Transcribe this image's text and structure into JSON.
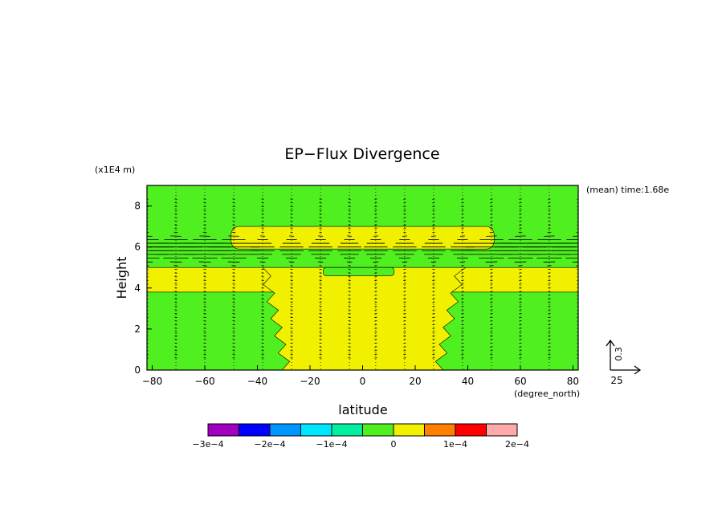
{
  "chart_data": {
    "type": "heatmap",
    "title": "EP−Flux Divergence",
    "xlabel": "latitude",
    "ylabel": "Height",
    "x_units": "(degree_north)",
    "y_units": "(x1E4 m)",
    "annotation": "(mean) time:1.68e",
    "xlim": [
      -82,
      82
    ],
    "ylim": [
      0,
      9
    ],
    "x_ticks": [
      -80,
      -60,
      -40,
      -20,
      0,
      20,
      40,
      60,
      80
    ],
    "x_tick_labels": [
      "−80",
      "−60",
      "−40",
      "−20",
      "0",
      "20",
      "40",
      "60",
      "80"
    ],
    "y_ticks": [
      0,
      2,
      4,
      6,
      8
    ],
    "y_tick_labels": [
      "0",
      "2",
      "4",
      "6",
      "8"
    ],
    "vector_key": {
      "x_label": "25",
      "y_label": "0.3"
    },
    "colorbar": {
      "levels": [
        "−3e−4",
        "−2e−4",
        "−1e−4",
        "0",
        "1e−4",
        "2e−4"
      ],
      "colors": [
        "#a000c0",
        "#0000ff",
        "#0096ff",
        "#00e6ff",
        "#00f0a0",
        "#50f020",
        "#f0f000",
        "#ff8000",
        "#ff0000",
        "#ffaaaa"
      ]
    },
    "regions": {
      "background_color": "#50f020",
      "positive_color": "#f0f000",
      "upper_yellow_band": {
        "lat": [
          -50,
          50
        ],
        "height": [
          5.9,
          7.0
        ]
      },
      "mid_yellow_band": {
        "lat": [
          -82,
          82
        ],
        "height": [
          3.8,
          5.0
        ]
      },
      "tropical_core": {
        "lat": [
          -38,
          38
        ],
        "height": [
          0,
          5.0
        ]
      },
      "green_pocket": {
        "lat": [
          -15,
          12
        ],
        "height": [
          4.6,
          5.0
        ]
      }
    },
    "vector_columns_lat": [
      -82,
      -71,
      -60,
      -49,
      -38,
      -27,
      -16,
      -5,
      5,
      16,
      27,
      38,
      49,
      60,
      71,
      82
    ],
    "vector_peak_height": 5.9
  }
}
